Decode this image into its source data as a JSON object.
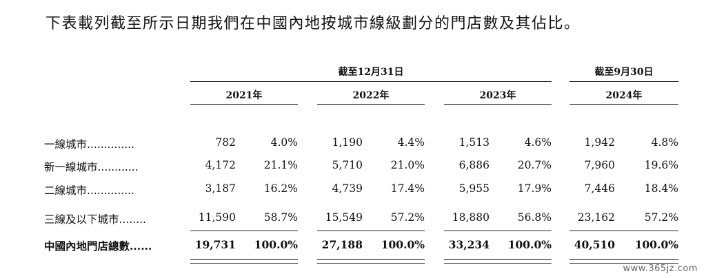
{
  "intro": "下表載列截至所示日期我們在中國內地按城市線級劃分的門店數及其佔比。",
  "table": {
    "group_headers": [
      "截至12月31日",
      "截至9月30日"
    ],
    "year_headers": [
      "2021年",
      "2022年",
      "2023年",
      "2024年"
    ],
    "rows": [
      {
        "label": "一線城市..............",
        "cells": [
          "782",
          "4.0%",
          "1,190",
          "4.4%",
          "1,513",
          "4.6%",
          "1,942",
          "4.8%"
        ]
      },
      {
        "label": "新一線城市............",
        "cells": [
          "4,172",
          "21.1%",
          "5,710",
          "21.0%",
          "6,886",
          "20.7%",
          "7,960",
          "19.6%"
        ]
      },
      {
        "label": "二線城市..............",
        "cells": [
          "3,187",
          "16.2%",
          "4,739",
          "17.4%",
          "5,955",
          "17.9%",
          "7,446",
          "18.4%"
        ]
      },
      {
        "label": "三線及以下城市........",
        "cells": [
          "11,590",
          "58.7%",
          "15,549",
          "57.2%",
          "18,880",
          "56.8%",
          "23,162",
          "57.2%"
        ]
      }
    ],
    "total": {
      "label": "中國內地門店總數......",
      "cells": [
        "19,731",
        "100.0%",
        "27,188",
        "100.0%",
        "33,234",
        "100.0%",
        "40,510",
        "100.0%"
      ]
    }
  },
  "watermark": "www.365jz.com"
}
